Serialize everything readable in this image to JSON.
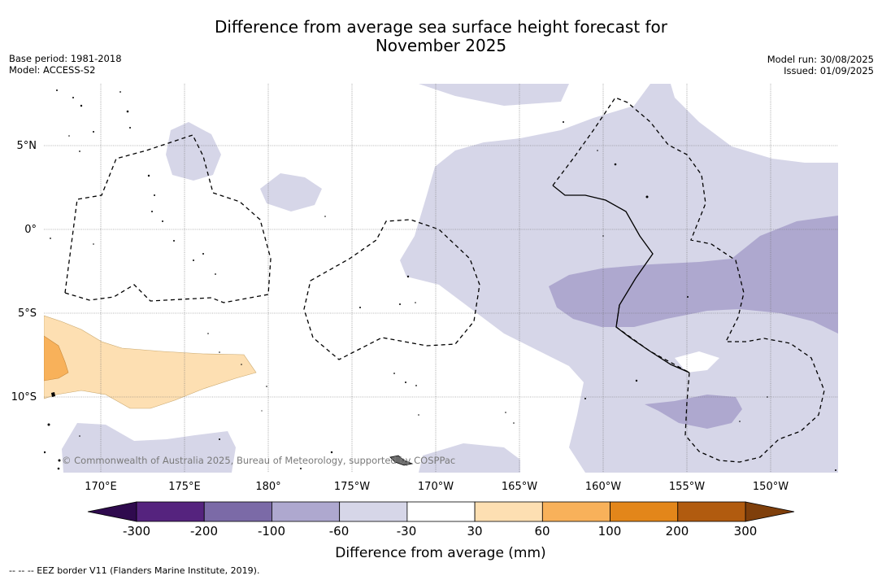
{
  "header": {
    "title_line1": "Difference from average sea surface height forecast for",
    "title_line2": "November 2025",
    "base_period": "Base period: 1981-2018",
    "model": "Model: ACCESS-S2",
    "model_run": "Model run: 30/08/2025",
    "issued": "Issued: 01/09/2025"
  },
  "map": {
    "lat_labels": [
      "5°N",
      "0°",
      "5°S",
      "10°S"
    ],
    "lon_labels": [
      "170°E",
      "175°E",
      "180°",
      "175°W",
      "170°W",
      "165°W",
      "160°W",
      "155°W",
      "150°W"
    ],
    "copyright": "© Commonwealth of Australia 2025, Bureau of Meteorology, supported by COSPPac"
  },
  "colorbar": {
    "label": "Difference from average (mm)",
    "ticks": [
      "-300",
      "-200",
      "-100",
      "-60",
      "-30",
      "30",
      "60",
      "100",
      "200",
      "300"
    ],
    "colors": [
      "#55237e",
      "#7b6aa7",
      "#aea8cf",
      "#d6d6e8",
      "#ffffff",
      "#fddfb2",
      "#f8b15a",
      "#e3861a",
      "#b15b0f"
    ],
    "under_color": "#2f0a4e",
    "over_color": "#7f3f0b"
  },
  "footer": {
    "legend": "--  --  -- EEZ border V11 (Flanders Marine Institute, 2019)."
  }
}
